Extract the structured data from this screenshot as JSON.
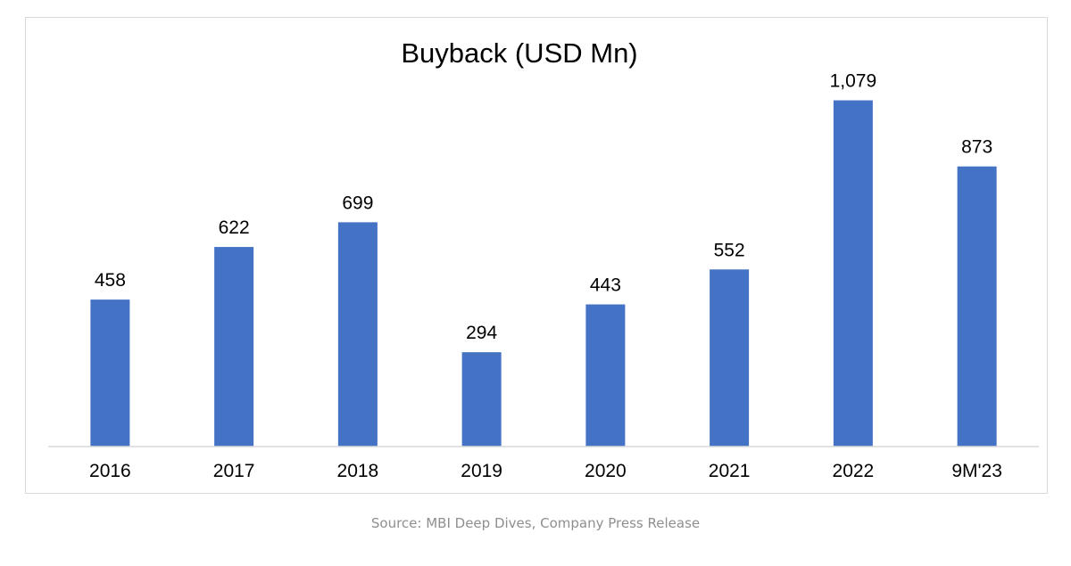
{
  "chart_data": {
    "type": "bar",
    "title": "Buyback (USD Mn)",
    "xlabel": "",
    "ylabel": "",
    "categories": [
      "2016",
      "2017",
      "2018",
      "2019",
      "2020",
      "2021",
      "2022",
      "9M'23"
    ],
    "values": [
      458,
      622,
      699,
      294,
      443,
      552,
      1079,
      873
    ],
    "value_labels": [
      "458",
      "622",
      "699",
      "294",
      "443",
      "552",
      "1,079",
      "873"
    ],
    "ylim": [
      0,
      1200
    ],
    "grid": false,
    "legend": "none",
    "bar_color": "#4472C4"
  },
  "caption": "Source: MBI Deep Dives, Company Press Release"
}
